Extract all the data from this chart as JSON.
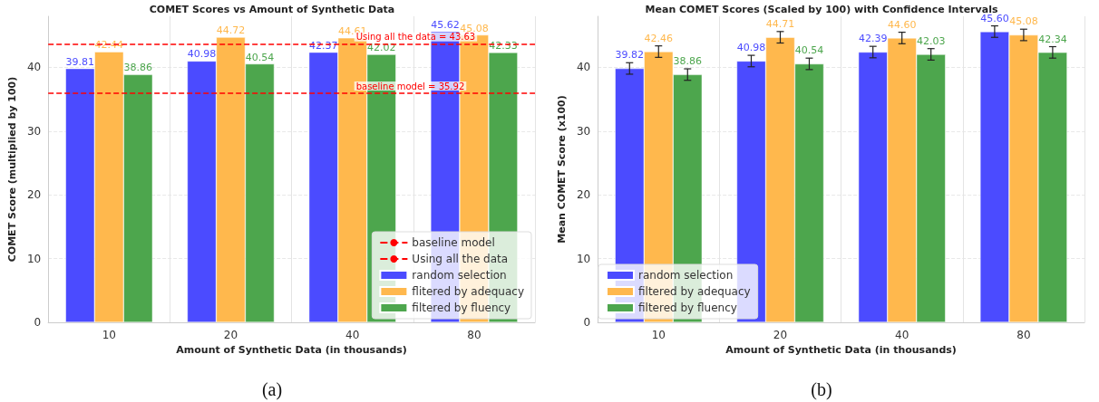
{
  "chart_data": [
    {
      "type": "bar",
      "title": "COMET Scores vs Amount of Synthetic Data",
      "xlabel": "Amount of Synthetic Data (in thousands)",
      "ylabel": "COMET Score (multiplied by 100)",
      "categories": [
        "10",
        "20",
        "40",
        "80"
      ],
      "series": [
        {
          "name": "random selection",
          "color": "#4b4bff",
          "values": [
            39.81,
            40.98,
            42.37,
            45.62
          ]
        },
        {
          "name": "flitered by adequacy",
          "color": "#ffb84d",
          "values": [
            42.44,
            44.72,
            44.61,
            45.08
          ]
        },
        {
          "name": "filtered by fluency",
          "color": "#4da64d",
          "values": [
            38.86,
            40.54,
            42.02,
            42.33
          ]
        }
      ],
      "ylim": [
        0,
        48
      ],
      "yticks": [
        0,
        10,
        20,
        30,
        40
      ],
      "grid": true,
      "legend": "bottom right",
      "data_labels": true,
      "ref_lines": [
        {
          "axis": "y",
          "value": 35.92,
          "label": "baseline model",
          "color": "#ff0000",
          "line_style": "dashed"
        },
        {
          "axis": "y",
          "value": 43.63,
          "label": "Using all the data",
          "color": "#ff0000",
          "line_style": "dashed"
        }
      ],
      "annotations": [
        {
          "text": "baseline model = 35.92",
          "x": "40",
          "y": 35.92
        },
        {
          "text": "Using all the data = 43.63",
          "x": "40",
          "y": 43.63
        },
        "(a)"
      ]
    },
    {
      "type": "bar",
      "title": "Mean COMET Scores (Scaled by 100) with Confidence Intervals",
      "xlabel": "Amount of Synthetic Data (in thousands)",
      "ylabel": "Mean COMET Score (x100)",
      "categories": [
        "10",
        "20",
        "40",
        "80"
      ],
      "series": [
        {
          "name": "random selection",
          "color": "#4b4bff",
          "values": [
            39.82,
            40.98,
            42.39,
            45.6
          ],
          "value_labels": [
            "39.82",
            "40.98",
            "42.39",
            "45.60"
          ],
          "errors": [
            0.9,
            0.9,
            0.9,
            0.9
          ]
        },
        {
          "name": "filtered by adequacy",
          "color": "#ffb84d",
          "values": [
            42.46,
            44.71,
            44.6,
            45.08
          ],
          "value_labels": [
            "42.46",
            "44.71",
            "44.60",
            "45.08"
          ],
          "errors": [
            0.9,
            0.9,
            0.9,
            0.9
          ]
        },
        {
          "name": "filtered by fluency",
          "color": "#4da64d",
          "values": [
            38.86,
            40.54,
            42.03,
            42.34
          ],
          "value_labels": [
            "38.86",
            "40.54",
            "42.03",
            "42.34"
          ],
          "errors": [
            0.9,
            0.9,
            0.9,
            0.9
          ]
        }
      ],
      "ylim": [
        0,
        48
      ],
      "yticks": [
        0,
        10,
        20,
        30,
        40
      ],
      "grid": true,
      "legend": "bottom left",
      "annotations": [
        "(b)"
      ]
    }
  ]
}
